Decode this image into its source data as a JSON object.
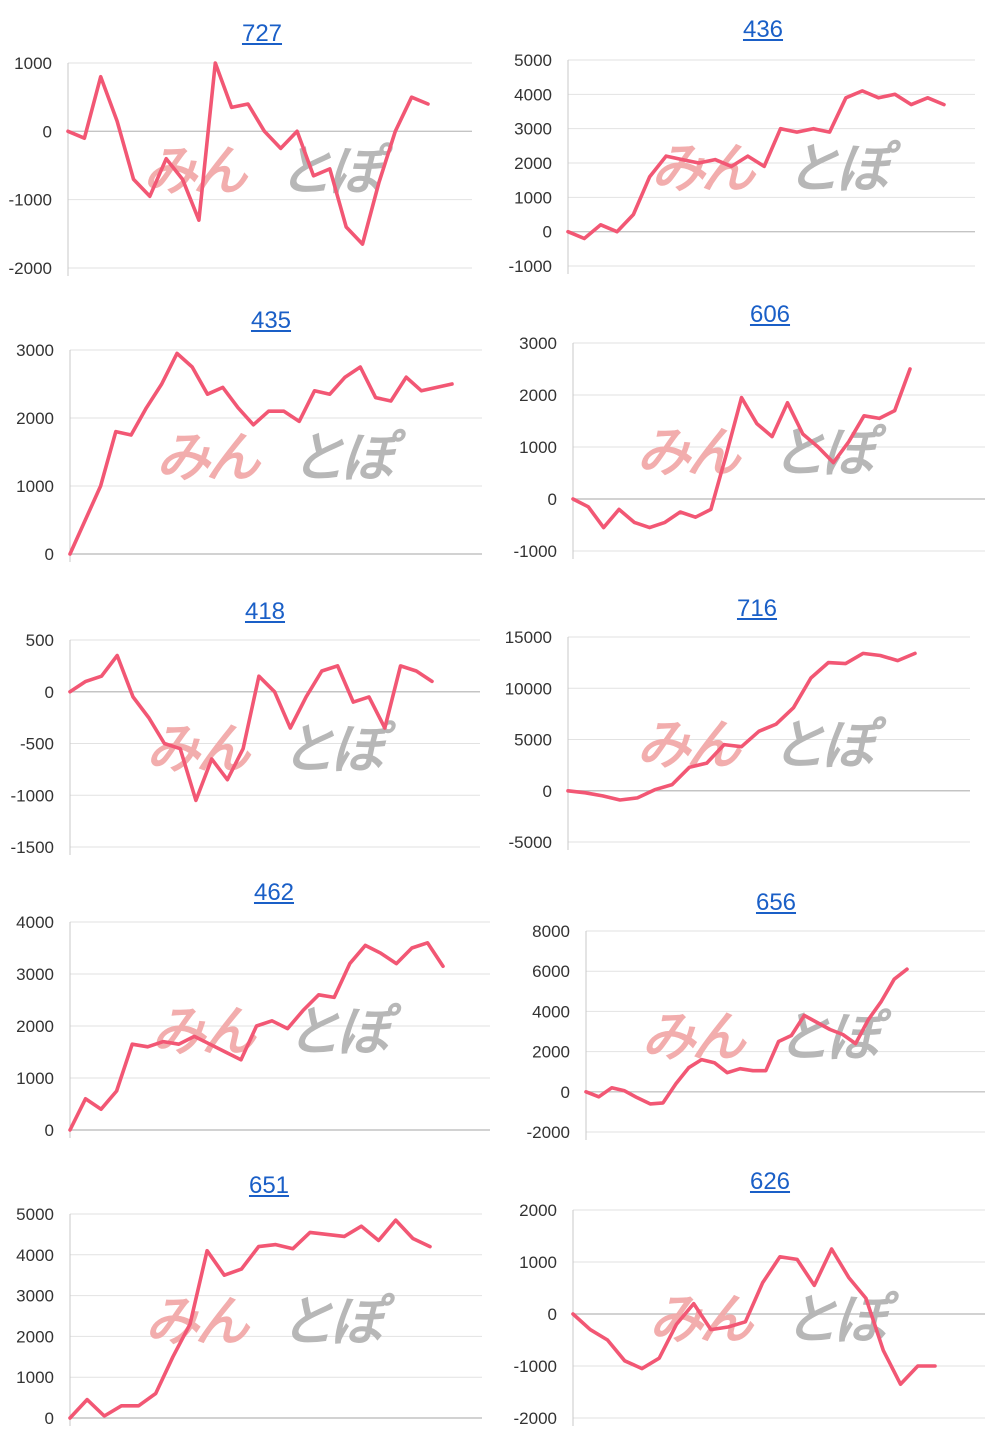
{
  "colors": {
    "line": "#f25774",
    "grid": "#e2e2e2",
    "axis": "#c8c8c8",
    "title": "#1a5fc7"
  },
  "watermark": {
    "text_red": "みん",
    "text_gray": "とぽ",
    "color_red": "#f2a9a9",
    "color_gray": "#b4b4b4"
  },
  "chart_data": [
    {
      "type": "line",
      "title": "727",
      "ylim": [
        -2000,
        1000
      ],
      "yticks": [
        1000,
        0,
        -1000,
        -2000
      ],
      "values": [
        0,
        -100,
        800,
        150,
        -700,
        -950,
        -400,
        -700,
        -1300,
        1000,
        350,
        400,
        0,
        -250,
        0,
        -650,
        -550,
        -1400,
        -1650,
        -750,
        0,
        500,
        400
      ]
    },
    {
      "type": "line",
      "title": "436",
      "ylim": [
        -1000,
        5000
      ],
      "yticks": [
        5000,
        4000,
        3000,
        2000,
        1000,
        0,
        -1000
      ],
      "values": [
        0,
        -200,
        200,
        0,
        500,
        1600,
        2200,
        2100,
        2000,
        2100,
        1900,
        2200,
        1900,
        3000,
        2900,
        3000,
        2900,
        3900,
        4100,
        3900,
        4000,
        3700,
        3900,
        3700
      ]
    },
    {
      "type": "line",
      "title": "435",
      "ylim": [
        0,
        3000
      ],
      "yticks": [
        3000,
        2000,
        1000,
        0
      ],
      "values": [
        0,
        500,
        1000,
        1800,
        1750,
        2150,
        2500,
        2950,
        2750,
        2350,
        2450,
        2150,
        1900,
        2100,
        2100,
        1950,
        2400,
        2350,
        2600,
        2750,
        2300,
        2250,
        2600,
        2400,
        2450,
        2500
      ]
    },
    {
      "type": "line",
      "title": "606",
      "ylim": [
        -1000,
        3000
      ],
      "yticks": [
        3000,
        2000,
        1000,
        0,
        -1000
      ],
      "values": [
        0,
        -150,
        -550,
        -200,
        -450,
        -550,
        -450,
        -250,
        -350,
        -200,
        850,
        1950,
        1450,
        1200,
        1850,
        1250,
        1000,
        700,
        1100,
        1600,
        1550,
        1700,
        2500
      ]
    },
    {
      "type": "line",
      "title": "418",
      "ylim": [
        -1500,
        500
      ],
      "yticks": [
        500,
        0,
        -500,
        -1000,
        -1500
      ],
      "values": [
        0,
        100,
        150,
        350,
        -50,
        -250,
        -500,
        -550,
        -1050,
        -650,
        -850,
        -550,
        150,
        0,
        -350,
        -50,
        200,
        250,
        -100,
        -50,
        -350,
        250,
        200,
        100
      ]
    },
    {
      "type": "line",
      "title": "716",
      "ylim": [
        -5000,
        15000
      ],
      "yticks": [
        15000,
        10000,
        5000,
        0,
        -5000
      ],
      "values": [
        0,
        -200,
        -500,
        -900,
        -700,
        100,
        600,
        2300,
        2700,
        4500,
        4300,
        5800,
        6500,
        8100,
        11000,
        12500,
        12400,
        13400,
        13200,
        12700,
        13400
      ]
    },
    {
      "type": "line",
      "title": "462",
      "ylim": [
        0,
        4000
      ],
      "yticks": [
        4000,
        3000,
        2000,
        1000,
        0
      ],
      "values": [
        0,
        600,
        400,
        750,
        1650,
        1600,
        1700,
        1650,
        1800,
        1650,
        1500,
        1350,
        2000,
        2100,
        1950,
        2300,
        2600,
        2550,
        3200,
        3550,
        3400,
        3200,
        3500,
        3600,
        3150
      ]
    },
    {
      "type": "line",
      "title": "656",
      "ylim": [
        -2000,
        8000
      ],
      "yticks": [
        8000,
        6000,
        4000,
        2000,
        0,
        -2000
      ],
      "values": [
        0,
        -250,
        200,
        50,
        -300,
        -600,
        -550,
        400,
        1200,
        1600,
        1450,
        950,
        1150,
        1050,
        1050,
        2500,
        2800,
        3800,
        3450,
        3100,
        2850,
        2400,
        3600,
        4500,
        5600,
        6100
      ]
    },
    {
      "type": "line",
      "title": "651",
      "ylim": [
        0,
        5000
      ],
      "yticks": [
        5000,
        4000,
        3000,
        2000,
        1000,
        0
      ],
      "values": [
        0,
        450,
        50,
        300,
        300,
        600,
        1500,
        2300,
        4100,
        3500,
        3650,
        4200,
        4250,
        4150,
        4550,
        4500,
        4450,
        4700,
        4350,
        4850,
        4400,
        4200
      ]
    },
    {
      "type": "line",
      "title": "626",
      "ylim": [
        -2000,
        2000
      ],
      "yticks": [
        2000,
        1000,
        0,
        -1000,
        -2000
      ],
      "values": [
        0,
        -300,
        -500,
        -900,
        -1050,
        -850,
        -200,
        200,
        -300,
        -250,
        -150,
        600,
        1100,
        1050,
        550,
        1250,
        700,
        300,
        -700,
        -1350,
        -1000,
        -1000
      ]
    }
  ]
}
